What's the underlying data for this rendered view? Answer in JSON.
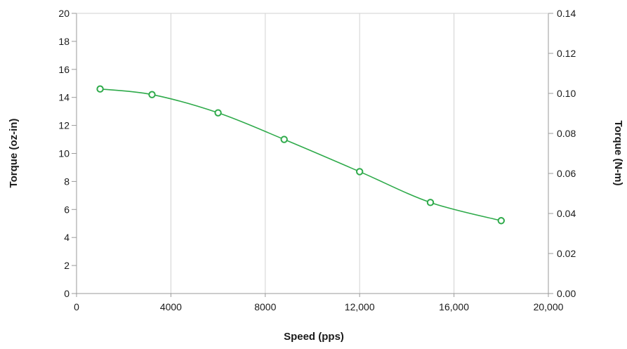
{
  "chart_data": {
    "type": "line",
    "title": "",
    "xlabel": "Speed (pps)",
    "ylabel": "Torque (oz-in)",
    "y2label": "Torque (N-m)",
    "xlim": [
      0,
      20000
    ],
    "ylim": [
      0,
      20
    ],
    "y2lim": [
      0,
      0.14
    ],
    "x_ticks": [
      0,
      4000,
      8000,
      12000,
      16000,
      20000
    ],
    "x_tick_labels": [
      "0",
      "4000",
      "8000",
      "12,000",
      "16,000",
      "20,000"
    ],
    "y_ticks": [
      0,
      2,
      4,
      6,
      8,
      10,
      12,
      14,
      16,
      18,
      20
    ],
    "y_tick_labels": [
      "0",
      "2",
      "4",
      "6",
      "8",
      "10",
      "12",
      "14",
      "16",
      "18",
      "20"
    ],
    "y2_ticks": [
      0,
      0.02,
      0.04,
      0.06,
      0.08,
      0.1,
      0.12,
      0.14
    ],
    "y2_tick_labels": [
      "0.00",
      "0.02",
      "0.04",
      "0.06",
      "0.08",
      "0.10",
      "0.12",
      "0.14"
    ],
    "grid": "vertical",
    "series": [
      {
        "x": [
          1000,
          3200,
          6000,
          8800,
          12000,
          15000,
          18000
        ],
        "y": [
          14.6,
          14.2,
          12.9,
          11.0,
          8.7,
          6.5,
          5.2
        ]
      }
    ],
    "colors": {
      "line": "#2eaa4a",
      "axis": "#9a9a9a",
      "grid": "#d2d2d2"
    }
  }
}
